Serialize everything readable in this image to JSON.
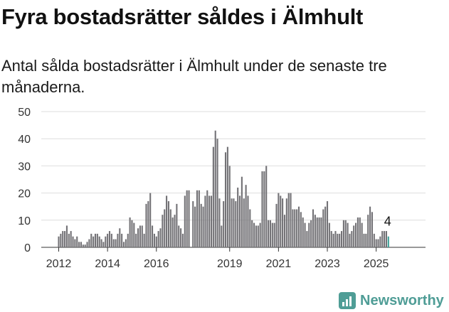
{
  "header": {
    "title": "Fyra bostadsrätter såldes i Älmhult",
    "subtitle": "Antal sålda bostadsrätter i Älmhult under de senaste tre månaderna."
  },
  "brand": {
    "name": "Newsworthy",
    "color": "#4f9d96",
    "icon": "bar-chart-logo-icon"
  },
  "chart_data": {
    "type": "bar",
    "title": "",
    "xlabel": "",
    "ylabel": "",
    "ylim": [
      0,
      50
    ],
    "yticks": [
      0,
      10,
      20,
      30,
      40,
      50
    ],
    "grid": true,
    "legend": "none",
    "bar_color": "#737276",
    "highlight_color": "#3ea39a",
    "x_start": "2012-01",
    "x_end": "2025-04",
    "xticks": [
      {
        "label": "2012",
        "at": "2012-01"
      },
      {
        "label": "2014",
        "at": "2014-01"
      },
      {
        "label": "2016",
        "at": "2016-01"
      },
      {
        "label": "2019",
        "at": "2019-01"
      },
      {
        "label": "2021",
        "at": "2021-01"
      },
      {
        "label": "2023",
        "at": "2023-01"
      },
      {
        "label": "2025",
        "at": "2025-01"
      }
    ],
    "series": [
      {
        "values": [
          4,
          5,
          6,
          6,
          8,
          5,
          6,
          4,
          3,
          4,
          2,
          2,
          1,
          1,
          2,
          3,
          5,
          4,
          5,
          5,
          4,
          3,
          2,
          4,
          5,
          6,
          5,
          3,
          3,
          5,
          7,
          5,
          2,
          3,
          5,
          11,
          10,
          9,
          5,
          7,
          8,
          8,
          5,
          16,
          17,
          20,
          8,
          5,
          4,
          6,
          7,
          12,
          14,
          19,
          17,
          14,
          11,
          12,
          16,
          8,
          7,
          5,
          19,
          21,
          21,
          0,
          17,
          15,
          21,
          21,
          16,
          15,
          19,
          21,
          19,
          19,
          37,
          43,
          40,
          18,
          8,
          17,
          35,
          37,
          30,
          18,
          18,
          17,
          22,
          19,
          26,
          18,
          23,
          19,
          14,
          10,
          9,
          8,
          8,
          9,
          28,
          28,
          30,
          10,
          10,
          9,
          9,
          16,
          20,
          19,
          18,
          12,
          18,
          20,
          20,
          14,
          14,
          14,
          15,
          13,
          11,
          9,
          6,
          9,
          10,
          14,
          12,
          11,
          11,
          11,
          14,
          15,
          17,
          9,
          6,
          5,
          6,
          5,
          5,
          6,
          10,
          10,
          9,
          5,
          6,
          8,
          9,
          11,
          11,
          9,
          5,
          5,
          12,
          15,
          13,
          5,
          3,
          3,
          4,
          6,
          6,
          6,
          4
        ]
      }
    ],
    "last_value_label": "4"
  }
}
